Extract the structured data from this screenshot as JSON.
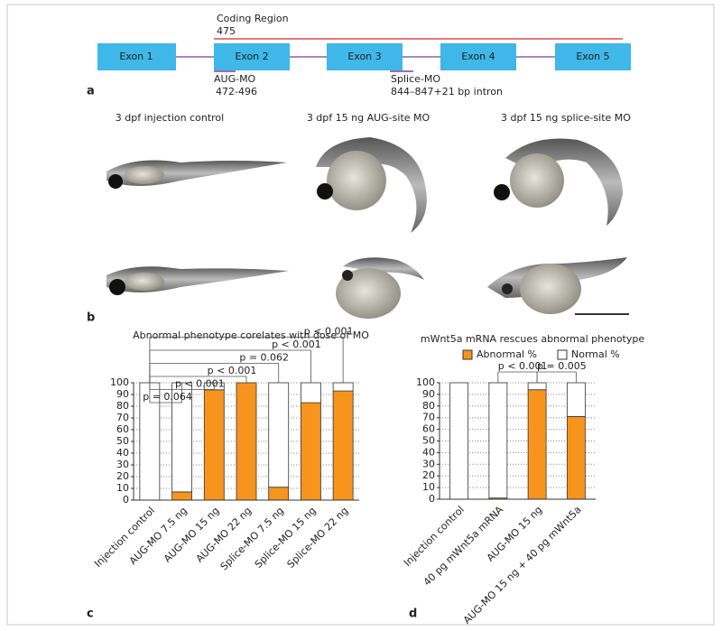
{
  "panel_labels": [
    "a",
    "b",
    "c",
    "d"
  ],
  "diagram": {
    "exons": [
      "Exon 1",
      "Exon 2",
      "Exon 3",
      "Exon 4",
      "Exon 5"
    ],
    "coding_region": "Coding Region",
    "coding_length": "475",
    "aug_mo": "AUG-MO",
    "aug_mo_range": "472-496",
    "splice_mo": "Splice-MO",
    "splice_mo_range": "844–847+21 bp intron"
  },
  "photos": {
    "captions": [
      "3 dpf injection control",
      "3 dpf 15 ng AUG-site MO",
      "3 dpf 15 ng splice-site MO"
    ]
  },
  "chart_data": [
    {
      "type": "bar",
      "stacked": true,
      "title": "Abnormal phenotype corelates with dose of MO",
      "categories": [
        "Injection control",
        "AUG-MO 7.5 ng",
        "AUG-MO 15 ng",
        "AUG-MO 22 ng",
        "Splice-MO 7.5 ng",
        "Splice-MO 15 ng",
        "Splice-MO 22 ng"
      ],
      "series": [
        {
          "color": "#f7941d",
          "values": [
            0,
            7,
            94,
            100,
            11,
            83,
            93
          ]
        },
        {
          "color": "#ffffff",
          "values": [
            100,
            93,
            6,
            0,
            89,
            17,
            7
          ]
        }
      ],
      "ylim": [
        0,
        100
      ],
      "yticks": [
        0,
        10,
        20,
        30,
        40,
        50,
        60,
        70,
        80,
        90,
        100
      ],
      "grid": true,
      "annotations": [
        {
          "text": "p = 0.064",
          "from": "Injection control",
          "to": "AUG-MO 7.5 ng"
        },
        {
          "text": "p < 0.001",
          "from": "Injection control",
          "to": "AUG-MO 15 ng"
        },
        {
          "text": "p < 0.001",
          "from": "Injection control",
          "to": "AUG-MO 22 ng"
        },
        {
          "text": "p = 0.062",
          "from": "Injection control",
          "to": "Splice-MO 7.5 ng"
        },
        {
          "text": "p < 0.001",
          "from": "Injection control",
          "to": "Splice-MO 15 ng"
        },
        {
          "text": "p < 0.001",
          "from": "Injection control",
          "to": "Splice-MO 22 ng"
        }
      ]
    },
    {
      "type": "bar",
      "stacked": true,
      "title": "mWnt5a mRNA rescues abnormal phenotype",
      "categories": [
        "Injection control",
        "40 pg mWnt5a mRNA",
        "AUG-MO 15 ng",
        "AUG-MO 15 ng + 40 pg mWnt5a"
      ],
      "series": [
        {
          "name": "Abnormal %",
          "color": "#f7941d",
          "values": [
            0,
            1,
            94,
            71
          ]
        },
        {
          "name": "Normal %",
          "color": "#ffffff",
          "values": [
            100,
            99,
            6,
            29
          ]
        }
      ],
      "ylim": [
        0,
        100
      ],
      "yticks": [
        0,
        10,
        20,
        30,
        40,
        50,
        60,
        70,
        80,
        90,
        100
      ],
      "grid": true,
      "legend": "top",
      "annotations": [
        {
          "text": "p < 0.001",
          "from": "40 pg mWnt5a mRNA",
          "to": "AUG-MO 15 ng"
        },
        {
          "text": "p = 0.005",
          "from": "AUG-MO 15 ng",
          "to": "AUG-MO 15 ng + 40 pg mWnt5a"
        }
      ]
    }
  ]
}
